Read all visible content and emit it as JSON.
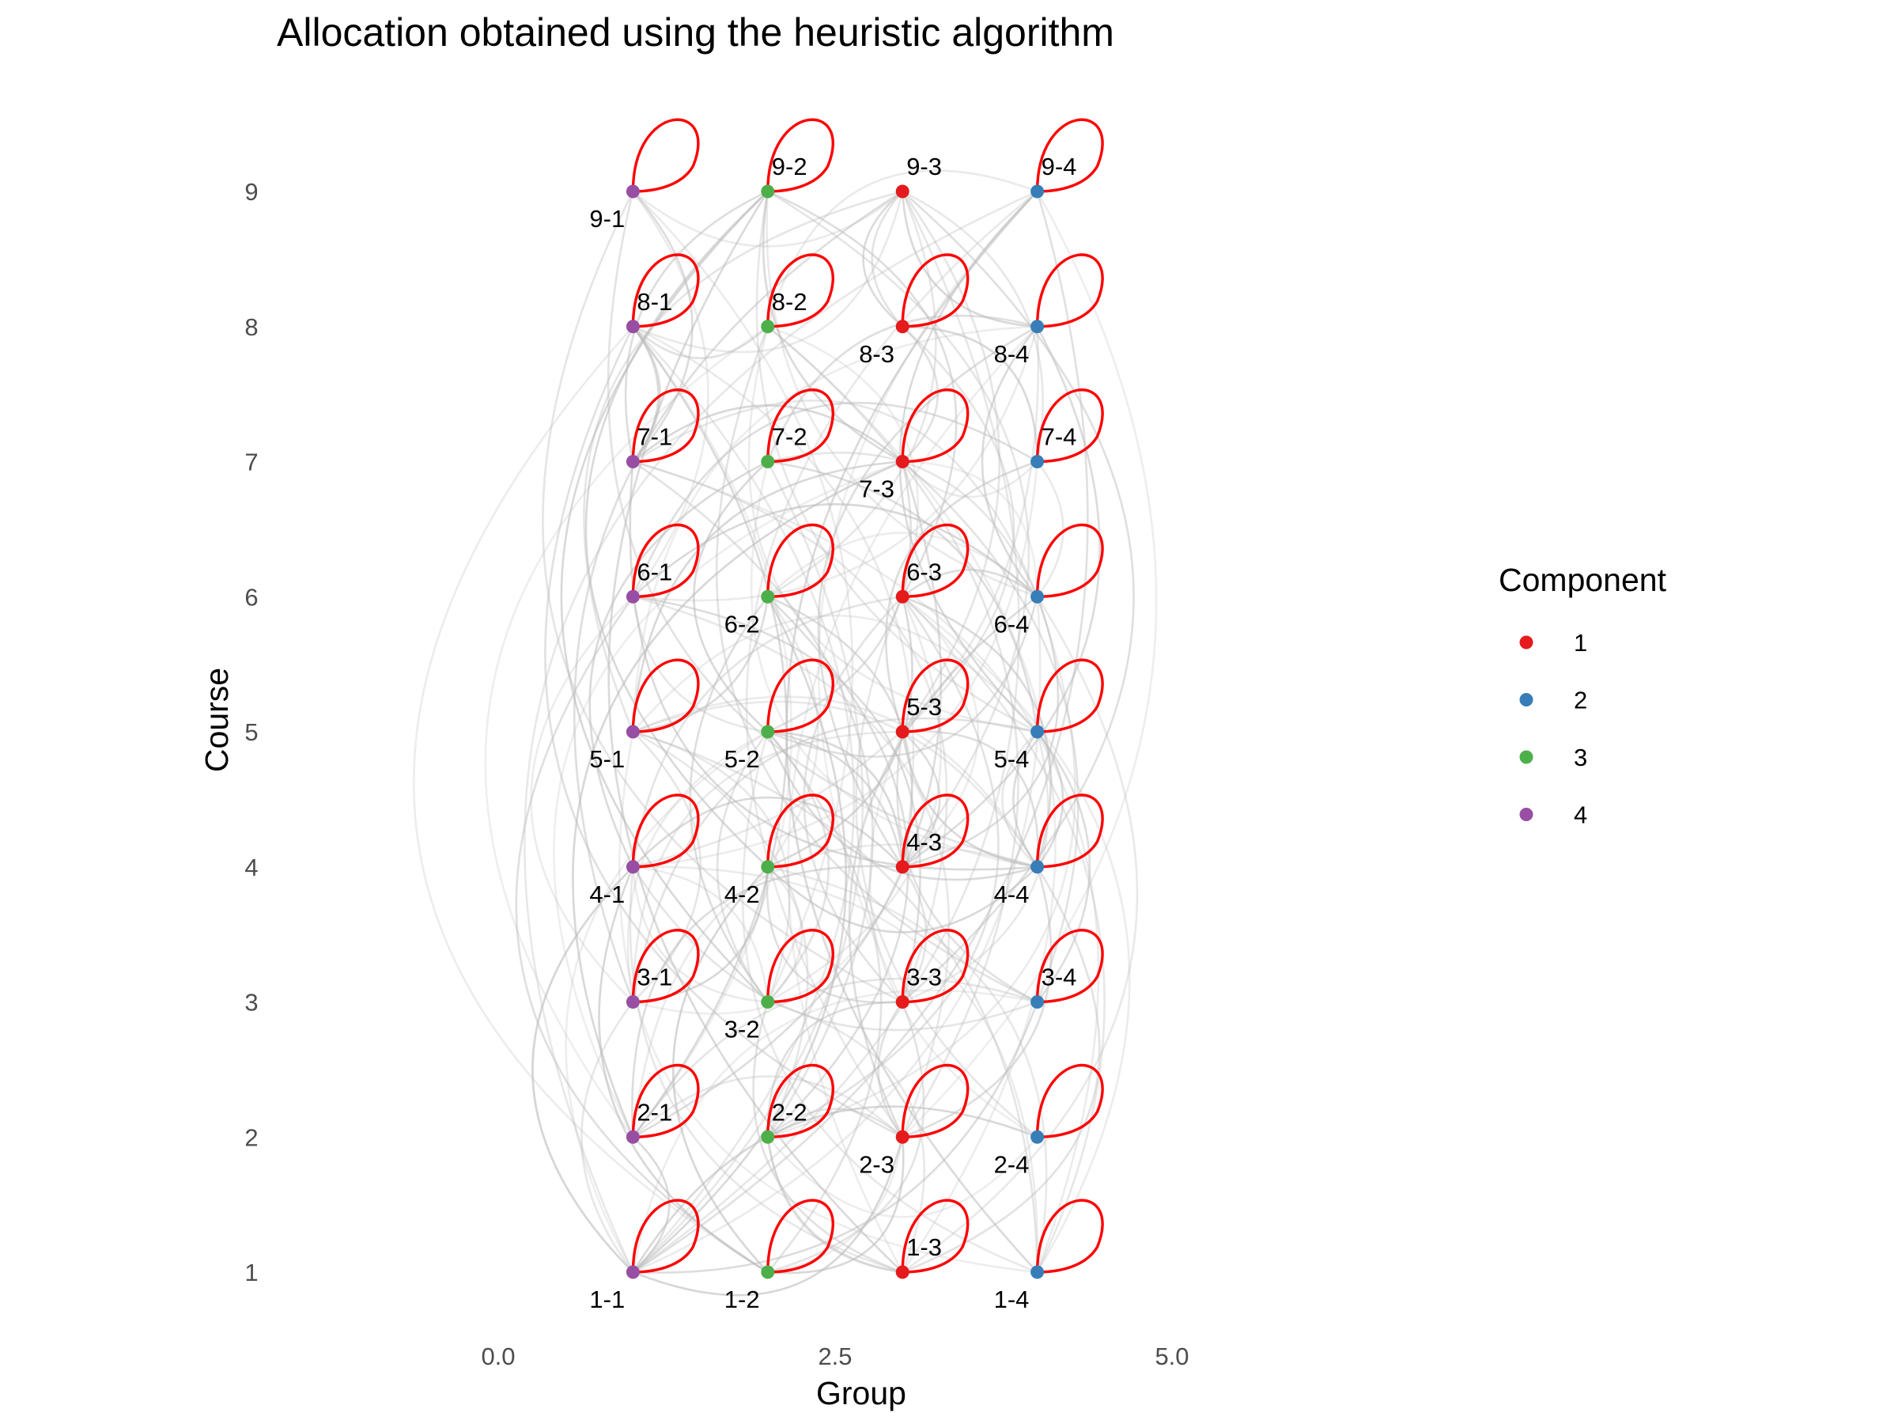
{
  "chart_data": {
    "type": "network",
    "title": "Allocation obtained using the heuristic algorithm",
    "xlabel": "Group",
    "ylabel": "Course",
    "xlim": [
      -0.9,
      6.5
    ],
    "ylim": [
      0.5,
      9.8
    ],
    "x_ticks": [
      "0.0",
      "2.5",
      "5.0"
    ],
    "x_tick_values": [
      0,
      2.5,
      5
    ],
    "y_ticks": [
      "1",
      "2",
      "3",
      "4",
      "5",
      "6",
      "7",
      "8",
      "9"
    ],
    "y_tick_values": [
      1,
      2,
      3,
      4,
      5,
      6,
      7,
      8,
      9
    ],
    "grid": false,
    "legend": {
      "title": "Component",
      "position": "right",
      "entries": [
        {
          "label": "1",
          "color": "#e41a1c"
        },
        {
          "label": "2",
          "color": "#377eb8"
        },
        {
          "label": "3",
          "color": "#4daf4a"
        },
        {
          "label": "4",
          "color": "#984ea3"
        }
      ]
    },
    "group_component": {
      "1": "4",
      "2": "3",
      "3": "1",
      "4": "2"
    },
    "self_loop_color": "#ff0000",
    "edge_color": "#bdbdbd",
    "nodes": [
      {
        "label": "1-1",
        "x": 1,
        "y": 1,
        "component": "4",
        "label_pos": "below",
        "loop": true
      },
      {
        "label": "1-2",
        "x": 2,
        "y": 1,
        "component": "3",
        "label_pos": "below",
        "loop": true
      },
      {
        "label": "1-3",
        "x": 3,
        "y": 1,
        "component": "1",
        "label_pos": "above",
        "loop": true
      },
      {
        "label": "1-4",
        "x": 4,
        "y": 1,
        "component": "2",
        "label_pos": "below",
        "loop": true
      },
      {
        "label": "2-1",
        "x": 1,
        "y": 2,
        "component": "4",
        "label_pos": "above",
        "loop": true
      },
      {
        "label": "2-2",
        "x": 2,
        "y": 2,
        "component": "3",
        "label_pos": "above",
        "loop": true
      },
      {
        "label": "2-3",
        "x": 3,
        "y": 2,
        "component": "1",
        "label_pos": "below",
        "loop": true
      },
      {
        "label": "2-4",
        "x": 4,
        "y": 2,
        "component": "2",
        "label_pos": "below",
        "loop": true
      },
      {
        "label": "3-1",
        "x": 1,
        "y": 3,
        "component": "4",
        "label_pos": "above",
        "loop": true
      },
      {
        "label": "3-2",
        "x": 2,
        "y": 3,
        "component": "3",
        "label_pos": "below",
        "loop": true
      },
      {
        "label": "3-3",
        "x": 3,
        "y": 3,
        "component": "1",
        "label_pos": "above",
        "loop": true
      },
      {
        "label": "3-4",
        "x": 4,
        "y": 3,
        "component": "2",
        "label_pos": "above",
        "loop": true
      },
      {
        "label": "4-1",
        "x": 1,
        "y": 4,
        "component": "4",
        "label_pos": "below",
        "loop": true
      },
      {
        "label": "4-2",
        "x": 2,
        "y": 4,
        "component": "3",
        "label_pos": "below",
        "loop": true
      },
      {
        "label": "4-3",
        "x": 3,
        "y": 4,
        "component": "1",
        "label_pos": "above",
        "loop": true
      },
      {
        "label": "4-4",
        "x": 4,
        "y": 4,
        "component": "2",
        "label_pos": "below",
        "loop": true
      },
      {
        "label": "5-1",
        "x": 1,
        "y": 5,
        "component": "4",
        "label_pos": "below",
        "loop": true
      },
      {
        "label": "5-2",
        "x": 2,
        "y": 5,
        "component": "3",
        "label_pos": "below",
        "loop": true
      },
      {
        "label": "5-3",
        "x": 3,
        "y": 5,
        "component": "1",
        "label_pos": "above",
        "loop": true
      },
      {
        "label": "5-4",
        "x": 4,
        "y": 5,
        "component": "2",
        "label_pos": "below",
        "loop": true
      },
      {
        "label": "6-1",
        "x": 1,
        "y": 6,
        "component": "4",
        "label_pos": "above",
        "loop": true
      },
      {
        "label": "6-2",
        "x": 2,
        "y": 6,
        "component": "3",
        "label_pos": "below",
        "loop": true
      },
      {
        "label": "6-3",
        "x": 3,
        "y": 6,
        "component": "1",
        "label_pos": "above",
        "loop": true
      },
      {
        "label": "6-4",
        "x": 4,
        "y": 6,
        "component": "2",
        "label_pos": "below",
        "loop": true
      },
      {
        "label": "7-1",
        "x": 1,
        "y": 7,
        "component": "4",
        "label_pos": "above",
        "loop": true
      },
      {
        "label": "7-2",
        "x": 2,
        "y": 7,
        "component": "3",
        "label_pos": "above",
        "loop": true
      },
      {
        "label": "7-3",
        "x": 3,
        "y": 7,
        "component": "1",
        "label_pos": "below",
        "loop": true
      },
      {
        "label": "7-4",
        "x": 4,
        "y": 7,
        "component": "2",
        "label_pos": "above",
        "loop": true
      },
      {
        "label": "8-1",
        "x": 1,
        "y": 8,
        "component": "4",
        "label_pos": "above",
        "loop": true
      },
      {
        "label": "8-2",
        "x": 2,
        "y": 8,
        "component": "3",
        "label_pos": "above",
        "loop": true
      },
      {
        "label": "8-3",
        "x": 3,
        "y": 8,
        "component": "1",
        "label_pos": "below",
        "loop": true
      },
      {
        "label": "8-4",
        "x": 4,
        "y": 8,
        "component": "2",
        "label_pos": "below",
        "loop": true
      },
      {
        "label": "9-1",
        "x": 1,
        "y": 9,
        "component": "4",
        "label_pos": "below",
        "loop": true
      },
      {
        "label": "9-2",
        "x": 2,
        "y": 9,
        "component": "3",
        "label_pos": "above",
        "loop": true
      },
      {
        "label": "9-3",
        "x": 3,
        "y": 9,
        "component": "1",
        "label_pos": "above",
        "loop": false
      },
      {
        "label": "9-4",
        "x": 4,
        "y": 9,
        "component": "2",
        "label_pos": "above",
        "loop": true
      }
    ]
  }
}
